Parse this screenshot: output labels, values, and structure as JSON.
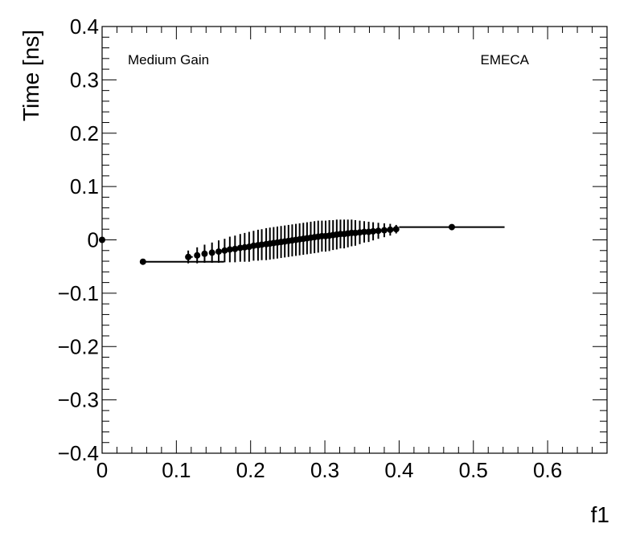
{
  "chart_data": {
    "type": "scatter",
    "ylabel": "Time [ns]",
    "xlabel": "f1",
    "xlim": [
      0,
      0.68
    ],
    "ylim": [
      -0.4,
      0.4
    ],
    "x_ticks": [
      0,
      0.1,
      0.2,
      0.3,
      0.4,
      0.5,
      0.6
    ],
    "x_tick_labels": [
      "0",
      "0.1",
      "0.2",
      "0.3",
      "0.4",
      "0.5",
      "0.6"
    ],
    "y_ticks": [
      -0.4,
      -0.3,
      -0.2,
      -0.1,
      0,
      0.1,
      0.2,
      0.3,
      0.4
    ],
    "y_tick_labels": [
      "−0.4",
      "−0.3",
      "−0.2",
      "−0.1",
      "0",
      "0.1",
      "0.2",
      "0.3",
      "0.4"
    ],
    "annotations": {
      "left": "Medium Gain",
      "right": "EMECA"
    },
    "grid": false,
    "points": [
      {
        "x": 0.0,
        "y": 0.0,
        "xerr": [
          0.0,
          0.0
        ],
        "yerr": 0.0
      },
      {
        "x": 0.055,
        "y": -0.041,
        "xerr": [
          0.0,
          0.109
        ],
        "yerr": 0.003
      },
      {
        "x": 0.116,
        "y": -0.032,
        "xerr": [
          0.004,
          0.006
        ],
        "yerr": 0.012
      },
      {
        "x": 0.128,
        "y": -0.029,
        "xerr": [
          0.003,
          0.003
        ],
        "yerr": 0.015
      },
      {
        "x": 0.138,
        "y": -0.026,
        "xerr": [
          0.003,
          0.003
        ],
        "yerr": 0.017
      },
      {
        "x": 0.148,
        "y": -0.024,
        "xerr": [
          0.003,
          0.003
        ],
        "yerr": 0.019
      },
      {
        "x": 0.157,
        "y": -0.022,
        "xerr": [
          0.003,
          0.003
        ],
        "yerr": 0.021
      },
      {
        "x": 0.165,
        "y": -0.02,
        "xerr": [
          0.003,
          0.003
        ],
        "yerr": 0.022
      },
      {
        "x": 0.172,
        "y": -0.018,
        "xerr": [
          0.002,
          0.002
        ],
        "yerr": 0.024
      },
      {
        "x": 0.179,
        "y": -0.017,
        "xerr": [
          0.002,
          0.002
        ],
        "yerr": 0.025
      },
      {
        "x": 0.186,
        "y": -0.015,
        "xerr": [
          0.002,
          0.002
        ],
        "yerr": 0.026
      },
      {
        "x": 0.192,
        "y": -0.014,
        "xerr": [
          0.002,
          0.002
        ],
        "yerr": 0.027
      },
      {
        "x": 0.198,
        "y": -0.013,
        "xerr": [
          0.002,
          0.002
        ],
        "yerr": 0.028
      },
      {
        "x": 0.204,
        "y": -0.011,
        "xerr": [
          0.002,
          0.002
        ],
        "yerr": 0.028
      },
      {
        "x": 0.21,
        "y": -0.01,
        "xerr": [
          0.002,
          0.002
        ],
        "yerr": 0.029
      },
      {
        "x": 0.215,
        "y": -0.009,
        "xerr": [
          0.002,
          0.002
        ],
        "yerr": 0.029
      },
      {
        "x": 0.221,
        "y": -0.008,
        "xerr": [
          0.002,
          0.002
        ],
        "yerr": 0.03
      },
      {
        "x": 0.226,
        "y": -0.007,
        "xerr": [
          0.002,
          0.002
        ],
        "yerr": 0.03
      },
      {
        "x": 0.231,
        "y": -0.006,
        "xerr": [
          0.002,
          0.002
        ],
        "yerr": 0.03
      },
      {
        "x": 0.236,
        "y": -0.005,
        "xerr": [
          0.002,
          0.002
        ],
        "yerr": 0.03
      },
      {
        "x": 0.241,
        "y": -0.004,
        "xerr": [
          0.002,
          0.002
        ],
        "yerr": 0.03
      },
      {
        "x": 0.246,
        "y": -0.003,
        "xerr": [
          0.002,
          0.002
        ],
        "yerr": 0.03
      },
      {
        "x": 0.251,
        "y": -0.002,
        "xerr": [
          0.002,
          0.002
        ],
        "yerr": 0.03
      },
      {
        "x": 0.256,
        "y": -0.001,
        "xerr": [
          0.002,
          0.002
        ],
        "yerr": 0.03
      },
      {
        "x": 0.261,
        "y": 0.0,
        "xerr": [
          0.002,
          0.002
        ],
        "yerr": 0.03
      },
      {
        "x": 0.266,
        "y": 0.001,
        "xerr": [
          0.002,
          0.002
        ],
        "yerr": 0.03
      },
      {
        "x": 0.271,
        "y": 0.002,
        "xerr": [
          0.002,
          0.002
        ],
        "yerr": 0.03
      },
      {
        "x": 0.276,
        "y": 0.003,
        "xerr": [
          0.002,
          0.002
        ],
        "yerr": 0.03
      },
      {
        "x": 0.281,
        "y": 0.004,
        "xerr": [
          0.002,
          0.002
        ],
        "yerr": 0.03
      },
      {
        "x": 0.286,
        "y": 0.005,
        "xerr": [
          0.002,
          0.002
        ],
        "yerr": 0.03
      },
      {
        "x": 0.291,
        "y": 0.006,
        "xerr": [
          0.002,
          0.002
        ],
        "yerr": 0.03
      },
      {
        "x": 0.296,
        "y": 0.007,
        "xerr": [
          0.002,
          0.002
        ],
        "yerr": 0.029
      },
      {
        "x": 0.301,
        "y": 0.007,
        "xerr": [
          0.002,
          0.002
        ],
        "yerr": 0.029
      },
      {
        "x": 0.306,
        "y": 0.008,
        "xerr": [
          0.002,
          0.002
        ],
        "yerr": 0.029
      },
      {
        "x": 0.311,
        "y": 0.009,
        "xerr": [
          0.002,
          0.002
        ],
        "yerr": 0.028
      },
      {
        "x": 0.316,
        "y": 0.01,
        "xerr": [
          0.002,
          0.002
        ],
        "yerr": 0.028
      },
      {
        "x": 0.321,
        "y": 0.011,
        "xerr": [
          0.002,
          0.002
        ],
        "yerr": 0.027
      },
      {
        "x": 0.326,
        "y": 0.011,
        "xerr": [
          0.002,
          0.002
        ],
        "yerr": 0.027
      },
      {
        "x": 0.331,
        "y": 0.012,
        "xerr": [
          0.002,
          0.002
        ],
        "yerr": 0.026
      },
      {
        "x": 0.336,
        "y": 0.013,
        "xerr": [
          0.002,
          0.002
        ],
        "yerr": 0.025
      },
      {
        "x": 0.341,
        "y": 0.013,
        "xerr": [
          0.002,
          0.002
        ],
        "yerr": 0.024
      },
      {
        "x": 0.347,
        "y": 0.014,
        "xerr": [
          0.002,
          0.002
        ],
        "yerr": 0.022
      },
      {
        "x": 0.353,
        "y": 0.015,
        "xerr": [
          0.002,
          0.002
        ],
        "yerr": 0.02
      },
      {
        "x": 0.359,
        "y": 0.015,
        "xerr": [
          0.003,
          0.003
        ],
        "yerr": 0.019
      },
      {
        "x": 0.365,
        "y": 0.016,
        "xerr": [
          0.003,
          0.003
        ],
        "yerr": 0.017
      },
      {
        "x": 0.372,
        "y": 0.017,
        "xerr": [
          0.003,
          0.003
        ],
        "yerr": 0.015
      },
      {
        "x": 0.38,
        "y": 0.018,
        "xerr": [
          0.003,
          0.003
        ],
        "yerr": 0.013
      },
      {
        "x": 0.388,
        "y": 0.019,
        "xerr": [
          0.003,
          0.003
        ],
        "yerr": 0.011
      },
      {
        "x": 0.396,
        "y": 0.02,
        "xerr": [
          0.003,
          0.004
        ],
        "yerr": 0.008
      },
      {
        "x": 0.471,
        "y": 0.024,
        "xerr": [
          0.071,
          0.071
        ],
        "yerr": 0.003
      }
    ]
  }
}
